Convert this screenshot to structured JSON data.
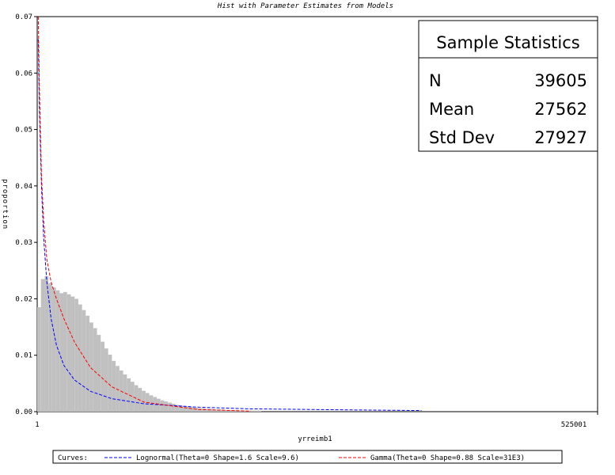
{
  "chart_data": {
    "type": "bar",
    "title": "Hist with Parameter Estimates from Models",
    "xlabel": "yrreimb1",
    "ylabel": "proportion",
    "x_ticks": [
      "1",
      "525001"
    ],
    "xlim": [
      1,
      525001
    ],
    "ylim": [
      0,
      0.07
    ],
    "y_ticks": [
      "0.00",
      "0.01",
      "0.02",
      "0.03",
      "0.04",
      "0.05",
      "0.06",
      "0.07"
    ],
    "grid": false,
    "histogram": {
      "bin_width": 3500,
      "x_start": 1,
      "values": [
        0.0185,
        0.0235,
        0.024,
        0.0228,
        0.022,
        0.0215,
        0.021,
        0.0212,
        0.0208,
        0.0204,
        0.02,
        0.019,
        0.018,
        0.017,
        0.0158,
        0.0148,
        0.0136,
        0.0124,
        0.0112,
        0.0101,
        0.009,
        0.0081,
        0.0073,
        0.0066,
        0.0059,
        0.0053,
        0.0047,
        0.0042,
        0.0037,
        0.0033,
        0.0029,
        0.0026,
        0.0023,
        0.002,
        0.0018,
        0.0016,
        0.0014,
        0.0012,
        0.0011,
        0.001,
        0.0009,
        0.0008,
        0.0007,
        0.0006,
        0.0006,
        0.0005,
        0.0005,
        0.0004,
        0.0004,
        0.0004,
        0.0003,
        0.0003,
        0.0003,
        0.0003,
        0.0002,
        0.0002,
        0.0002,
        0.0002,
        0.0002,
        0.0002
      ]
    },
    "series": [
      {
        "name": "Lognormal(Theta=0 Shape=1.6 Scale=9.6)",
        "color": "#0000ff",
        "style": "dashed",
        "x": [
          1000,
          2000,
          4000,
          6000,
          9000,
          13000,
          18000,
          25000,
          35000,
          50000,
          70000,
          100000,
          150000,
          200000,
          300000,
          360000
        ],
        "y": [
          0.066,
          0.054,
          0.04,
          0.031,
          0.023,
          0.0165,
          0.0118,
          0.0082,
          0.0056,
          0.0036,
          0.0023,
          0.0014,
          0.0008,
          0.0005,
          0.0003,
          0.0002
        ]
      },
      {
        "name": "Gamma(Theta=0 Shape=0.88 Scale=31E3)",
        "color": "#ff0000",
        "style": "dashed",
        "x": [
          1000,
          2000,
          4000,
          6000,
          9000,
          13000,
          18000,
          25000,
          35000,
          50000,
          70000,
          100000,
          150000,
          200000
        ],
        "y": [
          0.07,
          0.058,
          0.042,
          0.034,
          0.027,
          0.023,
          0.02,
          0.0165,
          0.0123,
          0.0078,
          0.0044,
          0.0017,
          0.0004,
          0.0001
        ]
      }
    ],
    "legend": {
      "position": "bottom",
      "label": "Curves:"
    },
    "inset_table": {
      "title": "Sample Statistics",
      "rows": [
        {
          "label": "N",
          "value": "39605"
        },
        {
          "label": "Mean",
          "value": "27562"
        },
        {
          "label": "Std Dev",
          "value": "27927"
        }
      ]
    }
  }
}
